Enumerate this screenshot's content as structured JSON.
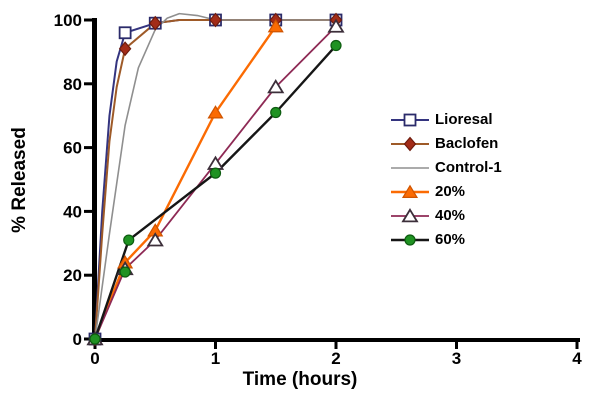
{
  "figure": {
    "background": "#ffffff",
    "axis_color": "#000000"
  },
  "chart_data": {
    "type": "line",
    "title": "",
    "xlabel": "Time (hours)",
    "ylabel": "% Released",
    "xlim": [
      0,
      4
    ],
    "ylim": [
      0,
      100
    ],
    "xticks": [
      0,
      1,
      2,
      3,
      4
    ],
    "yticks": [
      0,
      20,
      40,
      60,
      80,
      100
    ],
    "grid": false,
    "legend_position": "right",
    "series": [
      {
        "name": "Lioresal",
        "marker": "open-square",
        "line_color": "#34347f",
        "marker_fill": "#ffffff",
        "marker_stroke": "#2b2b6a",
        "line_width": 2,
        "points": [
          [
            0,
            0
          ],
          [
            0.25,
            96
          ],
          [
            0.5,
            99
          ],
          [
            1,
            100
          ],
          [
            1.5,
            100
          ],
          [
            2,
            100
          ]
        ],
        "line_points": [
          [
            0,
            0
          ],
          [
            0.06,
            40
          ],
          [
            0.12,
            70
          ],
          [
            0.18,
            87
          ],
          [
            0.25,
            96
          ],
          [
            0.5,
            99
          ],
          [
            0.7,
            100
          ],
          [
            1,
            100
          ],
          [
            1.5,
            100
          ],
          [
            2,
            100
          ]
        ]
      },
      {
        "name": "Baclofen",
        "marker": "filled-diamond",
        "line_color": "#9e5a28",
        "marker_fill": "#a32c18",
        "marker_stroke": "#6e1c0e",
        "line_width": 2,
        "points": [
          [
            0,
            0
          ],
          [
            0.25,
            91
          ],
          [
            0.5,
            99
          ],
          [
            1,
            100
          ],
          [
            1.5,
            100
          ],
          [
            2,
            100
          ]
        ],
        "line_points": [
          [
            0,
            0
          ],
          [
            0.06,
            33
          ],
          [
            0.12,
            62
          ],
          [
            0.18,
            79
          ],
          [
            0.25,
            91
          ],
          [
            0.5,
            99
          ],
          [
            0.7,
            100
          ],
          [
            1,
            100
          ],
          [
            1.5,
            100
          ],
          [
            2,
            100
          ]
        ]
      },
      {
        "name": "Control-1",
        "marker": "none",
        "line_color": "#8f8f8f",
        "marker_fill": "none",
        "marker_stroke": "none",
        "line_width": 1.6,
        "points": [
          [
            0,
            0
          ],
          [
            0.25,
            67
          ],
          [
            0.5,
            97
          ],
          [
            1,
            100
          ],
          [
            1.5,
            100
          ],
          [
            2,
            100
          ]
        ],
        "line_points": [
          [
            0,
            0
          ],
          [
            0.12,
            33
          ],
          [
            0.25,
            67
          ],
          [
            0.36,
            85
          ],
          [
            0.5,
            97
          ],
          [
            0.6,
            100.6
          ],
          [
            0.7,
            102
          ],
          [
            0.85,
            101.4
          ],
          [
            1,
            100
          ],
          [
            1.5,
            100
          ],
          [
            2,
            100
          ]
        ]
      },
      {
        "name": "20%",
        "marker": "filled-triangle",
        "line_color": "#fb6b03",
        "marker_fill": "#fb6b03",
        "marker_stroke": "#d05400",
        "line_width": 2.4,
        "points": [
          [
            0,
            0
          ],
          [
            0.25,
            24
          ],
          [
            0.5,
            34
          ],
          [
            1,
            71
          ],
          [
            1.5,
            98
          ]
        ]
      },
      {
        "name": "40%",
        "marker": "open-triangle",
        "line_color": "#8e2a55",
        "marker_fill": "#ffffff",
        "marker_stroke": "#3c2f3a",
        "line_width": 1.8,
        "points": [
          [
            0,
            0
          ],
          [
            0.25,
            22
          ],
          [
            0.5,
            31
          ],
          [
            1,
            55
          ],
          [
            1.5,
            79
          ],
          [
            2,
            98
          ]
        ]
      },
      {
        "name": "60%",
        "marker": "filled-circle",
        "line_color": "#161616",
        "marker_fill": "#1f9222",
        "marker_stroke": "#0d5c10",
        "line_width": 2.4,
        "points": [
          [
            0,
            0
          ],
          [
            0.25,
            21
          ],
          [
            0.28,
            31
          ],
          [
            1,
            52
          ],
          [
            1.5,
            71
          ],
          [
            2,
            92
          ]
        ],
        "line_points": [
          [
            0,
            0
          ],
          [
            0.28,
            31
          ],
          [
            1,
            52
          ],
          [
            1.5,
            71
          ],
          [
            2,
            92
          ]
        ]
      }
    ]
  }
}
